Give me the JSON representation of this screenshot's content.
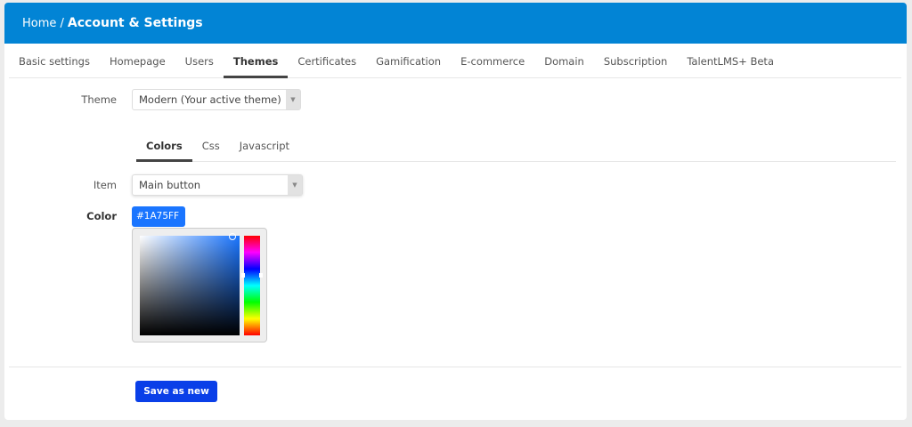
{
  "header": {
    "home": "Home",
    "separator": "/",
    "title": "Account & Settings"
  },
  "tabs": [
    "Basic settings",
    "Homepage",
    "Users",
    "Themes",
    "Certificates",
    "Gamification",
    "E-commerce",
    "Domain",
    "Subscription",
    "TalentLMS+ Beta"
  ],
  "active_tab": "Themes",
  "theme": {
    "label": "Theme",
    "value": "Modern (Your active theme)"
  },
  "subtabs": [
    "Colors",
    "Css",
    "Javascript"
  ],
  "active_subtab": "Colors",
  "item": {
    "label": "Item",
    "value": "Main button"
  },
  "color": {
    "label": "Color",
    "value": "#1A75FF"
  },
  "save_label": "Save as new",
  "colors": {
    "header": "#0284d5",
    "button": "#0a3fe8",
    "selected": "#1a75ff"
  }
}
